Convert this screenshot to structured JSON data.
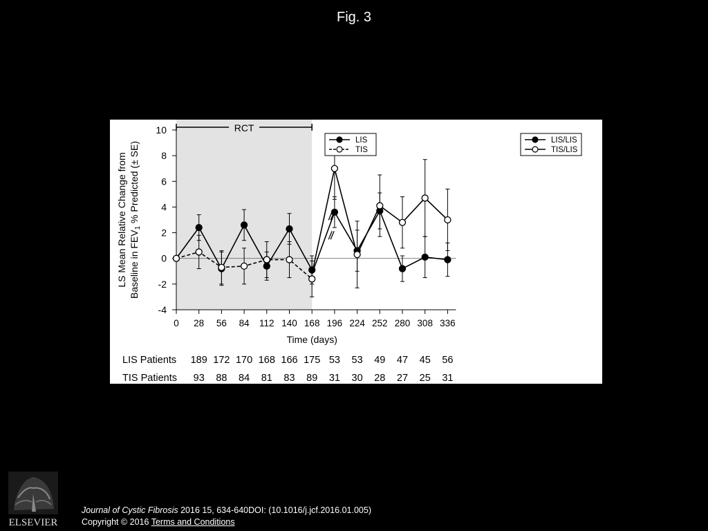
{
  "figure": {
    "title": "Fig. 3"
  },
  "chart_data": {
    "type": "line",
    "ylabel_line1": "LS Mean Relative Change from",
    "ylabel_line2_a": "Baseline in FEV",
    "ylabel_line2_sub": "1",
    "ylabel_line2_b": " % Predicted (± SE)",
    "xlabel": "Time (days)",
    "ylim": [
      -4,
      10
    ],
    "yticks": [
      "10",
      "8",
      "6",
      "4",
      "2",
      "0",
      "-2",
      "-4"
    ],
    "ytick_values": [
      10,
      8,
      6,
      4,
      2,
      0,
      -2,
      -4
    ],
    "x": [
      0,
      28,
      56,
      84,
      112,
      140,
      168,
      196,
      224,
      252,
      280,
      308,
      336
    ],
    "xticks": [
      "0",
      "28",
      "56",
      "84",
      "112",
      "140",
      "168",
      "196",
      "224",
      "252",
      "280",
      "308",
      "336"
    ],
    "rct_label": "RCT",
    "rct_range": [
      0,
      168
    ],
    "legend_left": [
      "LIS",
      "TIS"
    ],
    "legend_right": [
      "LIS/LIS",
      "TIS/LIS"
    ],
    "series": [
      {
        "name": "LIS",
        "x": [
          0,
          28,
          56,
          84,
          112,
          140,
          168
        ],
        "y": [
          0,
          2.4,
          -0.8,
          2.6,
          -0.6,
          2.3,
          -0.9
        ],
        "se": [
          0,
          1.0,
          1.3,
          1.2,
          1.1,
          1.2,
          1.1
        ],
        "style": "solid",
        "marker": "filled"
      },
      {
        "name": "TIS",
        "x": [
          0,
          28,
          56,
          84,
          112,
          140,
          168
        ],
        "y": [
          0,
          0.5,
          -0.7,
          -0.6,
          -0.1,
          -0.1,
          -1.6
        ],
        "se": [
          0,
          1.3,
          1.3,
          1.4,
          1.4,
          1.4,
          1.4
        ],
        "style": "dashed",
        "marker": "open"
      },
      {
        "name": "LIS/LIS",
        "x": [
          196,
          224,
          252,
          280,
          308,
          336
        ],
        "y": [
          3.6,
          0.6,
          3.7,
          -0.8,
          0.1,
          -0.1
        ],
        "se": [
          1.2,
          1.6,
          1.4,
          1.0,
          1.6,
          1.3
        ],
        "style": "solid",
        "marker": "filled"
      },
      {
        "name": "TIS/LIS",
        "x": [
          196,
          224,
          252,
          280,
          308,
          336
        ],
        "y": [
          7.0,
          0.3,
          4.1,
          2.8,
          4.7,
          3.0
        ],
        "se": [
          2.4,
          2.6,
          2.4,
          2.0,
          3.0,
          2.4
        ],
        "style": "solid",
        "marker": "open"
      }
    ],
    "patients_table": [
      {
        "label": "LIS Patients",
        "values": [
          "189",
          "172",
          "170",
          "168",
          "166",
          "175",
          "53",
          "53",
          "49",
          "47",
          "45",
          "56"
        ]
      },
      {
        "label": "TIS Patients",
        "values": [
          "93",
          "88",
          "84",
          "81",
          "83",
          "89",
          "31",
          "30",
          "28",
          "27",
          "25",
          "31"
        ]
      }
    ]
  },
  "citation": {
    "journal": "Journal of Cystic Fibrosis",
    "rest": " 2016 15, 634-640DOI: (10.1016/j.jcf.2016.01.005)"
  },
  "copyright": {
    "text": "Copyright © 2016 ",
    "link": " Terms and Conditions"
  },
  "logo": {
    "name": "elsevier-logo",
    "wordmark": "ELSEVIER"
  }
}
